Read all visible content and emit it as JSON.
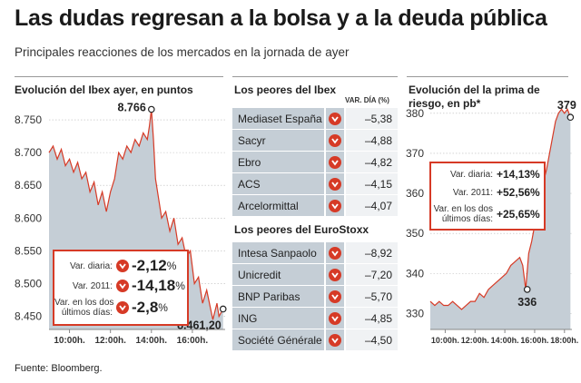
{
  "header": {
    "title": "Las dudas regresan a la bolsa y a la deuda pública",
    "subtitle": "Principales reacciones de los mercados en la jornada de ayer"
  },
  "source": "Fuente: Bloomberg.",
  "colors": {
    "accent": "#d63a26",
    "area": "#c5ced6",
    "line": "#d63a26"
  },
  "ibex_box": {
    "rows": [
      {
        "label": "Var. diaria:",
        "value": "-2,12",
        "unit": "%"
      },
      {
        "label": "Var. 2011:",
        "value": "-14,18",
        "unit": "%"
      },
      {
        "label_line1": "Var. en los dos",
        "label_line2": "últimos días:",
        "value": "-2,8",
        "unit": "%"
      }
    ]
  },
  "tables": {
    "ibex_title": "Los peores del Ibex",
    "col_header": "VAR. DÍA (%)",
    "ibex": [
      {
        "name": "Mediaset España",
        "value": "–5,38"
      },
      {
        "name": "Sacyr",
        "value": "–4,88"
      },
      {
        "name": "Ebro",
        "value": "–4,82"
      },
      {
        "name": "ACS",
        "value": "–4,15"
      },
      {
        "name": "Arcelormittal",
        "value": "–4,07"
      }
    ],
    "euro_title": "Los peores del EuroStoxx",
    "euro": [
      {
        "name": "Intesa Sanpaolo",
        "value": "–8,92"
      },
      {
        "name": "Unicredit",
        "value": "–7,20"
      },
      {
        "name": "BNP Paribas",
        "value": "–5,70"
      },
      {
        "name": "ING",
        "value": "–4,85"
      },
      {
        "name": "Société Générale",
        "value": "–4,50"
      }
    ]
  },
  "risk_box": {
    "rows": [
      {
        "label": "Var. diaria:",
        "value": "+14,13%"
      },
      {
        "label": "Var. 2011:",
        "value": "+52,56%"
      },
      {
        "label_line1": "Var. en los dos",
        "label_line2": "últimos días:",
        "value": "+25,65%"
      }
    ]
  },
  "chart_data": [
    {
      "type": "area",
      "title": "Evolución del Ibex ayer, en puntos",
      "xlabel": "",
      "ylabel": "",
      "x_ticks": [
        "10:00h.",
        "12:00h.",
        "14:00h.",
        "16:00h."
      ],
      "y_ticks": [
        "8.750",
        "8.700",
        "8.650",
        "8.600",
        "8.550",
        "8.500",
        "8.450"
      ],
      "ylim": [
        8430,
        8775
      ],
      "x_range": [
        9,
        17.6
      ],
      "annotations": [
        {
          "label": "8.766",
          "x": 14.0,
          "y": 8766
        },
        {
          "label": "8.461,20",
          "x": 17.5,
          "y": 8461.2
        }
      ],
      "series": [
        {
          "values": [
            [
              9.0,
              8700
            ],
            [
              9.2,
              8710
            ],
            [
              9.4,
              8690
            ],
            [
              9.6,
              8705
            ],
            [
              9.8,
              8680
            ],
            [
              10.0,
              8690
            ],
            [
              10.2,
              8670
            ],
            [
              10.4,
              8685
            ],
            [
              10.6,
              8660
            ],
            [
              10.8,
              8670
            ],
            [
              11.0,
              8640
            ],
            [
              11.2,
              8655
            ],
            [
              11.4,
              8620
            ],
            [
              11.6,
              8640
            ],
            [
              11.8,
              8610
            ],
            [
              12.0,
              8640
            ],
            [
              12.2,
              8660
            ],
            [
              12.4,
              8700
            ],
            [
              12.6,
              8690
            ],
            [
              12.8,
              8710
            ],
            [
              13.0,
              8700
            ],
            [
              13.2,
              8720
            ],
            [
              13.4,
              8710
            ],
            [
              13.6,
              8730
            ],
            [
              13.8,
              8720
            ],
            [
              13.9,
              8740
            ],
            [
              14.0,
              8766
            ],
            [
              14.1,
              8720
            ],
            [
              14.2,
              8660
            ],
            [
              14.3,
              8640
            ],
            [
              14.5,
              8600
            ],
            [
              14.7,
              8610
            ],
            [
              14.9,
              8580
            ],
            [
              15.1,
              8600
            ],
            [
              15.3,
              8560
            ],
            [
              15.5,
              8570
            ],
            [
              15.7,
              8540
            ],
            [
              15.9,
              8550
            ],
            [
              16.1,
              8500
            ],
            [
              16.3,
              8510
            ],
            [
              16.5,
              8470
            ],
            [
              16.7,
              8490
            ],
            [
              16.9,
              8460
            ],
            [
              17.0,
              8445
            ],
            [
              17.2,
              8470
            ],
            [
              17.3,
              8450
            ],
            [
              17.5,
              8461.2
            ]
          ]
        }
      ]
    },
    {
      "type": "area",
      "title": "Evolución del la prima de riesgo, en pb*",
      "xlabel": "",
      "ylabel": "",
      "x_ticks": [
        "10:00h.",
        "12:00h.",
        "14:00h.",
        "16:00h.",
        "18:00h."
      ],
      "y_ticks": [
        "380",
        "370",
        "360",
        "350",
        "340",
        "330"
      ],
      "ylim": [
        326,
        382
      ],
      "x_range": [
        9,
        18.5
      ],
      "annotations": [
        {
          "label": "379",
          "x": 18.4,
          "y": 379
        },
        {
          "label": "336",
          "x": 15.5,
          "y": 336
        }
      ],
      "series": [
        {
          "values": [
            [
              9.0,
              333
            ],
            [
              9.3,
              332
            ],
            [
              9.6,
              333
            ],
            [
              9.9,
              332
            ],
            [
              10.2,
              332
            ],
            [
              10.5,
              333
            ],
            [
              10.8,
              332
            ],
            [
              11.1,
              331
            ],
            [
              11.4,
              332
            ],
            [
              11.7,
              333
            ],
            [
              12.0,
              333
            ],
            [
              12.3,
              335
            ],
            [
              12.6,
              334
            ],
            [
              12.9,
              336
            ],
            [
              13.2,
              337
            ],
            [
              13.5,
              338
            ],
            [
              13.8,
              339
            ],
            [
              14.1,
              340
            ],
            [
              14.4,
              342
            ],
            [
              14.7,
              343
            ],
            [
              15.0,
              344
            ],
            [
              15.2,
              342
            ],
            [
              15.4,
              336
            ],
            [
              15.6,
              345
            ],
            [
              15.8,
              348
            ],
            [
              16.0,
              352
            ],
            [
              16.2,
              355
            ],
            [
              16.4,
              360
            ],
            [
              16.6,
              363
            ],
            [
              16.8,
              366
            ],
            [
              17.0,
              370
            ],
            [
              17.2,
              374
            ],
            [
              17.4,
              378
            ],
            [
              17.6,
              380
            ],
            [
              17.8,
              381
            ],
            [
              18.0,
              380
            ],
            [
              18.2,
              381
            ],
            [
              18.4,
              379
            ]
          ]
        }
      ]
    }
  ]
}
